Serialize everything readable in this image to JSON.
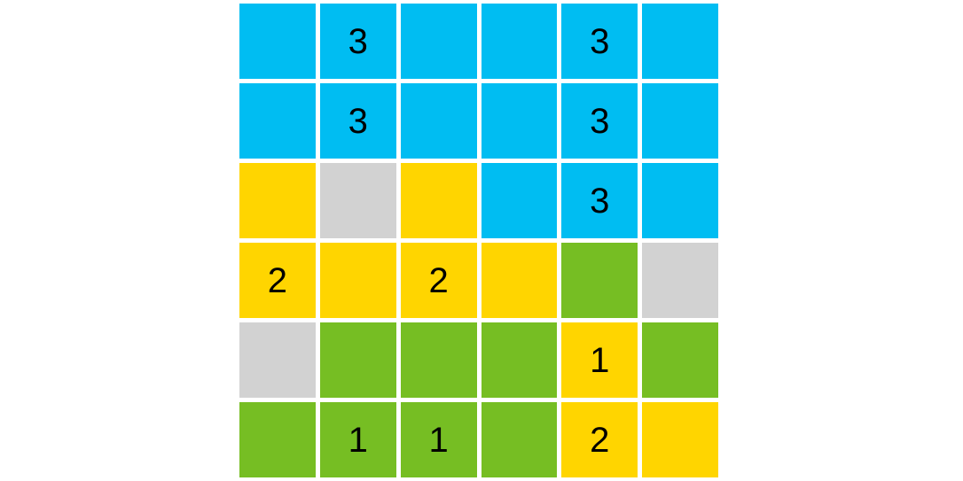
{
  "board": {
    "rows": 6,
    "cols": 6,
    "background": "#ffffff",
    "gap_color": "#ffffff",
    "number_color": "#000000",
    "palette": {
      "blue": "#00bdf2",
      "yellow": "#ffd500",
      "green": "#76be23",
      "gray": "#d2d2d2"
    },
    "cells": [
      [
        {
          "color": "blue",
          "label": ""
        },
        {
          "color": "blue",
          "label": "3"
        },
        {
          "color": "blue",
          "label": ""
        },
        {
          "color": "blue",
          "label": ""
        },
        {
          "color": "blue",
          "label": "3"
        },
        {
          "color": "blue",
          "label": ""
        }
      ],
      [
        {
          "color": "blue",
          "label": ""
        },
        {
          "color": "blue",
          "label": "3"
        },
        {
          "color": "blue",
          "label": ""
        },
        {
          "color": "blue",
          "label": ""
        },
        {
          "color": "blue",
          "label": "3"
        },
        {
          "color": "blue",
          "label": ""
        }
      ],
      [
        {
          "color": "yellow",
          "label": ""
        },
        {
          "color": "gray",
          "label": ""
        },
        {
          "color": "yellow",
          "label": ""
        },
        {
          "color": "blue",
          "label": ""
        },
        {
          "color": "blue",
          "label": "3"
        },
        {
          "color": "blue",
          "label": ""
        }
      ],
      [
        {
          "color": "yellow",
          "label": "2"
        },
        {
          "color": "yellow",
          "label": ""
        },
        {
          "color": "yellow",
          "label": "2"
        },
        {
          "color": "yellow",
          "label": ""
        },
        {
          "color": "green",
          "label": ""
        },
        {
          "color": "gray",
          "label": ""
        }
      ],
      [
        {
          "color": "gray",
          "label": ""
        },
        {
          "color": "green",
          "label": ""
        },
        {
          "color": "green",
          "label": ""
        },
        {
          "color": "green",
          "label": ""
        },
        {
          "color": "yellow",
          "label": "1"
        },
        {
          "color": "green",
          "label": ""
        }
      ],
      [
        {
          "color": "green",
          "label": ""
        },
        {
          "color": "green",
          "label": "1"
        },
        {
          "color": "green",
          "label": "1"
        },
        {
          "color": "green",
          "label": ""
        },
        {
          "color": "yellow",
          "label": "2"
        },
        {
          "color": "yellow",
          "label": ""
        }
      ]
    ]
  }
}
